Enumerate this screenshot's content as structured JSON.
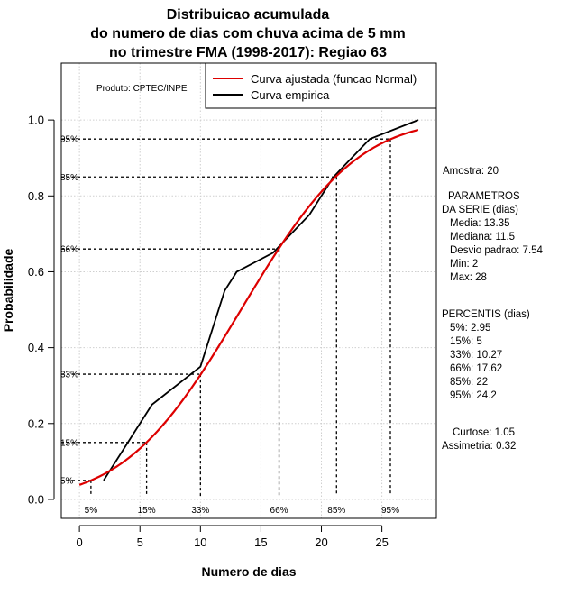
{
  "chart_data": {
    "type": "line",
    "title": [
      "Distribuicao acumulada",
      "do numero de dias com chuva acima de 5 mm",
      "no trimestre FMA (1998-2017): Regiao 63"
    ],
    "xlabel": "Numero de dias",
    "ylabel": "Probabilidade",
    "xlim": [
      -1.5,
      29.5
    ],
    "ylim": [
      -0.05,
      1.15
    ],
    "xticks": [
      0,
      5,
      10,
      15,
      20,
      25
    ],
    "yticks": [
      0.0,
      0.2,
      0.4,
      0.6,
      0.8,
      1.0
    ],
    "ytick_labels": [
      "0.0",
      "0.2",
      "0.4",
      "0.6",
      "0.8",
      "1.0"
    ],
    "grid": true,
    "producer": "Produto: CPTEC/INPE",
    "legend": {
      "position": "top-right",
      "entries": [
        {
          "label": "Curva ajustada (funcao Normal)",
          "color": "#dd0000"
        },
        {
          "label": "Curva empirica",
          "color": "#000000"
        }
      ]
    },
    "series": [
      {
        "name": "Curva empirica",
        "color": "#000000",
        "x": [
          2,
          3,
          4,
          5,
          6,
          10,
          12,
          13,
          16,
          19,
          20,
          21,
          24,
          28
        ],
        "y": [
          0.05,
          0.1,
          0.15,
          0.2,
          0.25,
          0.35,
          0.55,
          0.6,
          0.65,
          0.75,
          0.8,
          0.85,
          0.95,
          1.0
        ]
      },
      {
        "name": "Curva ajustada (funcao Normal)",
        "color": "#dd0000",
        "distribution": "normal",
        "mean": 13.35,
        "sd": 7.54,
        "x_range": [
          0,
          28
        ]
      }
    ],
    "percentile_markers": [
      {
        "label": "5%",
        "p": 0.05,
        "x": 0.95
      },
      {
        "label": "15%",
        "p": 0.15,
        "x": 5.55
      },
      {
        "label": "33%",
        "p": 0.33,
        "x": 10.0
      },
      {
        "label": "66%",
        "p": 0.66,
        "x": 16.5
      },
      {
        "label": "85%",
        "p": 0.85,
        "x": 21.25
      },
      {
        "label": "95%",
        "p": 0.95,
        "x": 25.7
      }
    ]
  },
  "side_panel": {
    "amostra": "Amostra: 20",
    "parametros_title": "PARAMETROS",
    "parametros_subtitle": "DA SERIE (dias)",
    "parametros": [
      "Media: 13.35",
      "Mediana: 11.5",
      "Desvio padrao: 7.54",
      "Min: 2",
      "Max: 28"
    ],
    "percentis_title": "PERCENTIS (dias)",
    "percentis": [
      "5%: 2.95",
      "15%: 5",
      "33%: 10.27",
      "66%: 17.62",
      "85%: 22",
      "95%: 24.2"
    ],
    "curtose": "Curtose: 1.05",
    "assimetria": "Assimetria: 0.32"
  }
}
